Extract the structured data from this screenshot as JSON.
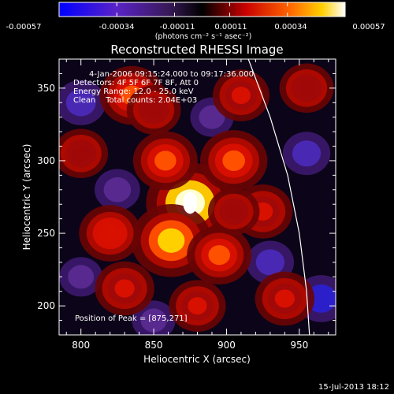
{
  "colorbar": {
    "ticks": [
      "-0.00057",
      "-0.00034",
      "-0.00011",
      "0.00011",
      "0.00034",
      "0.00057"
    ],
    "units": "(photons cm⁻² s⁻¹ asec⁻²)"
  },
  "annotations": {
    "time_range": "4-Jan-2006 09:15:24.000 to 09:17:36.000",
    "detectors": "Detectors: 4F 5F 6F 7F 8F, Att 0",
    "energy_range": "Energy Range: 12.0 - 25.0 keV",
    "clean_counts": "Clean    Total counts: 2.04E+03",
    "peak": "Position of Peak = [875,271]"
  },
  "footer_timestamp": "15-Jul-2013 18:12",
  "chart_data": {
    "type": "heatmap",
    "title": "Reconstructed RHESSI Image",
    "xlabel": "Heliocentric X (arcsec)",
    "ylabel": "Heliocentric Y (arcsec)",
    "xlim": [
      785,
      975
    ],
    "ylim": [
      180,
      370
    ],
    "xticks": [
      800,
      850,
      900,
      950
    ],
    "yticks": [
      200,
      250,
      300,
      350
    ],
    "colorbar_range": [
      -0.00057,
      0.00057
    ],
    "colormap": "RHESSI blue-purple-black-red-yellow-white",
    "peak": {
      "x": 875,
      "y": 271,
      "value": 0.00057
    },
    "limb_curve": [
      [
        915,
        370
      ],
      [
        930,
        330
      ],
      [
        942,
        290
      ],
      [
        950,
        250
      ],
      [
        955,
        210
      ],
      [
        957,
        180
      ]
    ],
    "bright_features": [
      {
        "x": 875,
        "y": 271,
        "intensity": 1.0
      },
      {
        "x": 862,
        "y": 245,
        "intensity": 0.85
      },
      {
        "x": 858,
        "y": 300,
        "intensity": 0.55
      },
      {
        "x": 905,
        "y": 300,
        "intensity": 0.6
      },
      {
        "x": 895,
        "y": 235,
        "intensity": 0.55
      },
      {
        "x": 835,
        "y": 345,
        "intensity": 0.55
      },
      {
        "x": 820,
        "y": 250,
        "intensity": 0.5
      },
      {
        "x": 830,
        "y": 212,
        "intensity": 0.45
      },
      {
        "x": 940,
        "y": 205,
        "intensity": 0.45
      },
      {
        "x": 925,
        "y": 265,
        "intensity": 0.45
      },
      {
        "x": 880,
        "y": 200,
        "intensity": 0.4
      },
      {
        "x": 910,
        "y": 345,
        "intensity": 0.4
      },
      {
        "x": 955,
        "y": 350,
        "intensity": 0.35
      },
      {
        "x": 800,
        "y": 305,
        "intensity": 0.35
      },
      {
        "x": 850,
        "y": 335,
        "intensity": 0.35
      },
      {
        "x": 905,
        "y": 265,
        "intensity": 0.3
      }
    ],
    "negative_features": [
      {
        "x": 800,
        "y": 340,
        "intensity": -0.5
      },
      {
        "x": 955,
        "y": 305,
        "intensity": -0.45
      },
      {
        "x": 930,
        "y": 230,
        "intensity": -0.45
      },
      {
        "x": 825,
        "y": 280,
        "intensity": -0.4
      },
      {
        "x": 890,
        "y": 330,
        "intensity": -0.35
      },
      {
        "x": 965,
        "y": 205,
        "intensity": -0.55
      },
      {
        "x": 850,
        "y": 190,
        "intensity": -0.35
      },
      {
        "x": 800,
        "y": 220,
        "intensity": -0.35
      }
    ]
  }
}
